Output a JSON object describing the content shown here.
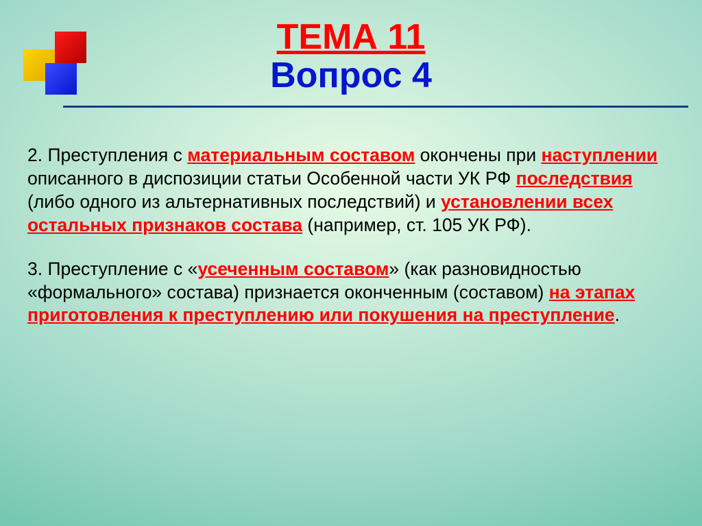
{
  "colors": {
    "bg_gradient_inner": "#e8fbe6",
    "bg_gradient_outer": "#9fd8c8",
    "bg_gradient_bottom": "#77c8b2",
    "red": "#ff1a1a",
    "blue": "#0516cf",
    "yellow": "#ffd400",
    "hr": "#0a3e82",
    "text_black": "#000000",
    "text_red": "#ff0000",
    "text_blue": "#0516cf"
  },
  "title": {
    "line1": "ТЕМА 11",
    "line2": "Вопрос 4"
  },
  "p1": {
    "lead": "2. Преступления с ",
    "u1": "материальным составом",
    "after_u1": " окончены при ",
    "u2": "наступлении",
    "after_u2": " описанного в диспозиции статьи Особенной части УК РФ ",
    "u3": "последствия",
    "after_u3": " (либо одного из альтернативных последствий) и ",
    "u4": "установлении всех остальных признаков состава",
    "after_u4": " (например, ст. 105 УК РФ)."
  },
  "p2": {
    "lead": "3. Преступление с «",
    "u1": "усеченным составом",
    "after_u1": "» (как разновидностью «формального» состава) признается оконченным (составом) ",
    "u2": "на этапах приготовления к преступлению или покушения на преступление",
    "after_u2": "."
  }
}
